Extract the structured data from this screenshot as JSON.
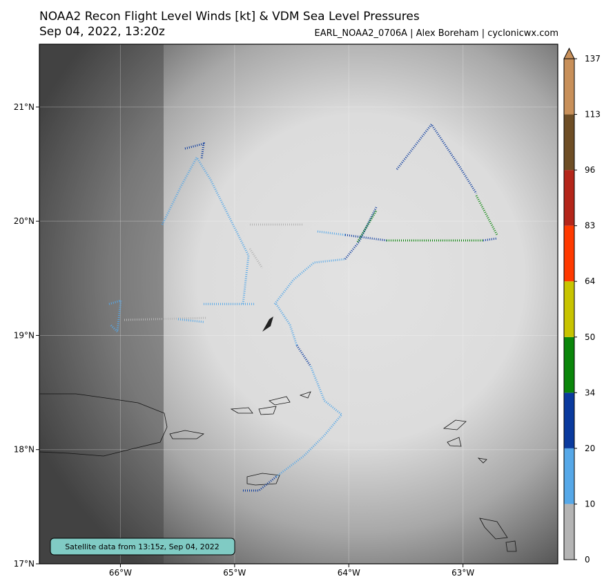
{
  "title": "NOAA2 Recon Flight Level Winds [kt] & VDM Sea Level Pressures",
  "subtitle": "Sep 04, 2022, 13:20z",
  "credit": "EARL_NOAA2_0706A | Alex Boreham | cyclonicwx.com",
  "note": "Satellite data from 13:15z, Sep 04, 2022",
  "map": {
    "xlim": [
      -66.71,
      -62.17
    ],
    "ylim": [
      17,
      21.55
    ],
    "xticks": [
      {
        "value": -66,
        "label": "66°W"
      },
      {
        "value": -65,
        "label": "65°W"
      },
      {
        "value": -64,
        "label": "64°W"
      },
      {
        "value": -63,
        "label": "63°W"
      }
    ],
    "yticks": [
      {
        "value": 17,
        "label": "17°N"
      },
      {
        "value": 18,
        "label": "18°N"
      },
      {
        "value": 19,
        "label": "19°N"
      },
      {
        "value": 20,
        "label": "20°N"
      },
      {
        "value": 21,
        "label": "21°N"
      }
    ],
    "grid": true
  },
  "colorbar": {
    "ticks": [
      0,
      10,
      20,
      34,
      50,
      64,
      83,
      96,
      113,
      137
    ],
    "colors": [
      "#b4b4b4",
      "#56a8e8",
      "#0a3a9e",
      "#0a860a",
      "#c8c400",
      "#ff3a00",
      "#b4261a",
      "#6e4e26",
      "#c8905a"
    ],
    "extend": "max"
  }
}
